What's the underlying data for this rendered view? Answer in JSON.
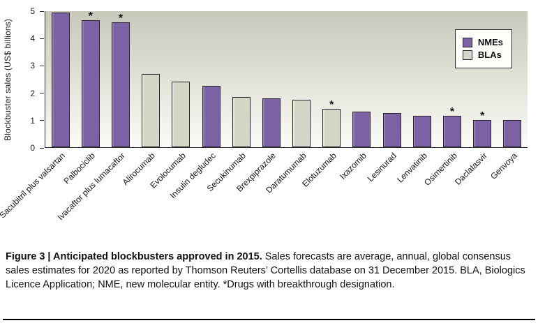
{
  "figure": {
    "caption_prefix": "Figure 3 | ",
    "caption_title": "Anticipated blockbusters approved in 2015.",
    "caption_body": " Sales forecasts are average, annual, global consensus sales estimates for 2020 as reported by Thomson Reuters’ Cortellis database on 31 December 2015. BLA, Biologics Licence Application; NME, new molecular entity. *Drugs with breakthrough designation."
  },
  "legend": {
    "items": [
      {
        "label": "NMEs",
        "color": "#7d61a5"
      },
      {
        "label": "BLAs",
        "color": "#d6d6c8"
      }
    ]
  },
  "colors": {
    "nme": "#7d61a5",
    "bla": "#d6d6c8",
    "bar_border": "#26222b"
  },
  "chart_data": {
    "type": "bar",
    "title": "",
    "xlabel": "",
    "ylabel": "Blockbuster sales (US$ billions)",
    "ylim": [
      0,
      5
    ],
    "yticks": [
      0,
      1,
      2,
      3,
      4,
      5
    ],
    "grid": false,
    "legend_position": "top-right",
    "categories": [
      "Sacubitril plus valsartan",
      "Palbociclib",
      "Ivacaftor plus lumacaftor",
      "Alirocumab",
      "Evolocumab",
      "Insulin degludec",
      "Secukinumab",
      "Brexpiprazole",
      "Daratumumab",
      "Elotuzumab",
      "Ixazomib",
      "Lesinurad",
      "Lenvatinib",
      "Osimertinib",
      "Daclatasvir",
      "Genvoya"
    ],
    "values": [
      4.95,
      4.8,
      4.6,
      2.7,
      2.4,
      2.25,
      1.85,
      1.8,
      1.75,
      1.4,
      1.3,
      1.25,
      1.15,
      1.15,
      1.0,
      1.0
    ],
    "bar_types": [
      "NME",
      "NME",
      "NME",
      "BLA",
      "BLA",
      "NME",
      "BLA",
      "NME",
      "BLA",
      "BLA",
      "NME",
      "NME",
      "NME",
      "NME",
      "NME",
      "NME"
    ],
    "breakthrough": [
      false,
      true,
      true,
      false,
      false,
      false,
      false,
      false,
      false,
      true,
      false,
      false,
      false,
      true,
      true,
      false
    ],
    "breakthrough_marker": "*"
  }
}
